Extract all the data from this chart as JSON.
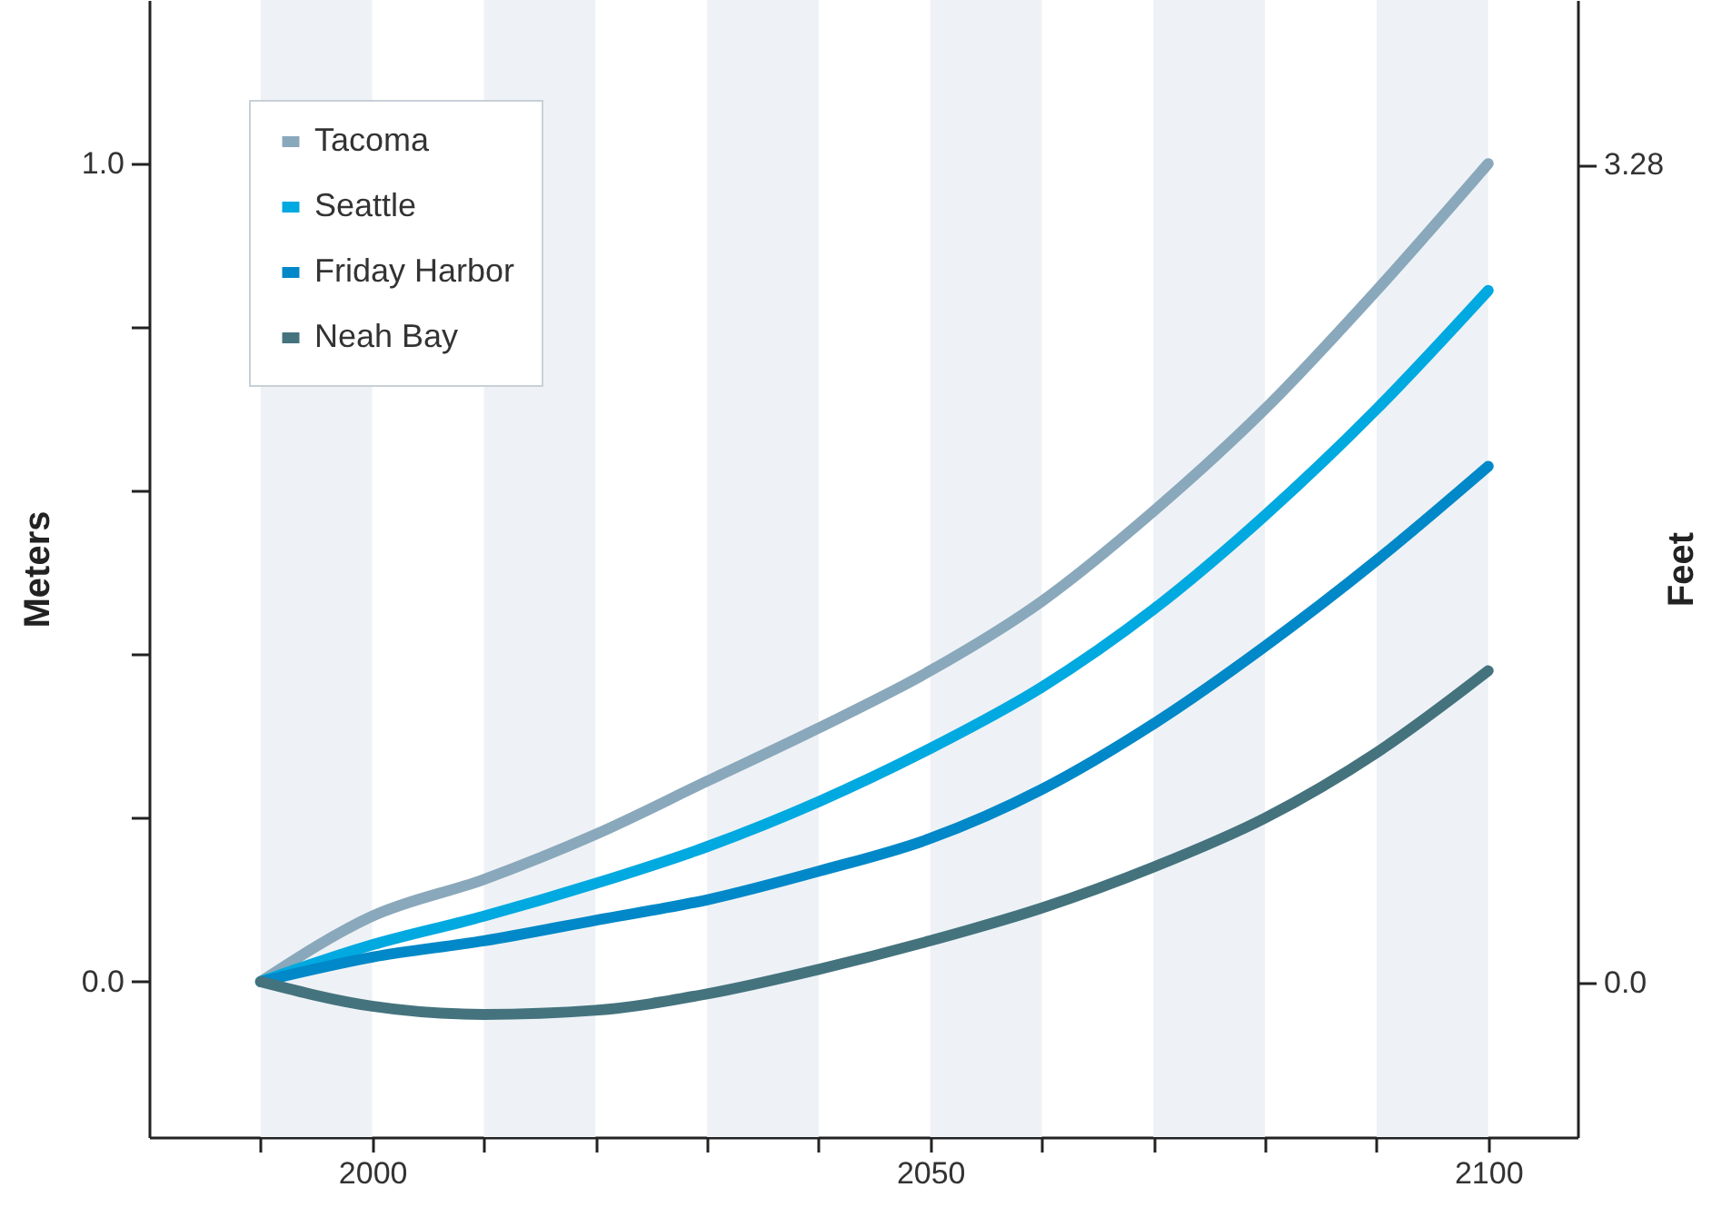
{
  "chart_data": {
    "type": "line",
    "ylabel": "Meters",
    "y2label": "Feet",
    "x": [
      1990,
      2000,
      2010,
      2020,
      2030,
      2040,
      2050,
      2060,
      2070,
      2080,
      2090,
      2100
    ],
    "series": [
      {
        "name": "Tacoma",
        "color": "#8aa8bb",
        "values": [
          0,
          0.08,
          0.125,
          0.18,
          0.245,
          0.31,
          0.38,
          0.465,
          0.575,
          0.7,
          0.845,
          1.0
        ]
      },
      {
        "name": "Seattle",
        "color": "#00a9e0",
        "values": [
          0,
          0.045,
          0.08,
          0.12,
          0.165,
          0.22,
          0.285,
          0.36,
          0.455,
          0.57,
          0.7,
          0.845
        ]
      },
      {
        "name": "Friday Harbor",
        "color": "#0088c8",
        "values": [
          0,
          0.03,
          0.05,
          0.075,
          0.1,
          0.135,
          0.175,
          0.235,
          0.315,
          0.41,
          0.515,
          0.63
        ]
      },
      {
        "name": "Neah Bay",
        "color": "#44737e",
        "values": [
          0,
          -0.03,
          -0.04,
          -0.035,
          -0.015,
          0.015,
          0.05,
          0.09,
          0.14,
          0.2,
          0.28,
          0.38
        ]
      }
    ],
    "xlim": [
      1980,
      2108
    ],
    "xticks": [
      {
        "value": 1990,
        "label": null
      },
      2000,
      {
        "value": 2010,
        "label": null
      },
      {
        "value": 2020,
        "label": null
      },
      {
        "value": 2030,
        "label": null
      },
      {
        "value": 2040,
        "label": null
      },
      2050,
      {
        "value": 2060,
        "label": null
      },
      {
        "value": 2070,
        "label": null
      },
      {
        "value": 2080,
        "label": null
      },
      {
        "value": 2090,
        "label": null
      },
      2100
    ],
    "ylim": [
      -0.19,
      1.2
    ],
    "yticks": [
      {
        "value": 0,
        "label": "0.0"
      },
      {
        "value": 0.2,
        "label": null
      },
      {
        "value": 0.4,
        "label": null
      },
      {
        "value": 0.6,
        "label": null
      },
      {
        "value": 0.8,
        "label": null
      },
      {
        "value": 1,
        "label": "1.0"
      }
    ],
    "y2lim": [
      -0.62,
      3.94
    ],
    "y2ticks": [
      {
        "value": 0,
        "label": "0.0"
      },
      3.28
    ],
    "bands": [
      {
        "axis": "x",
        "from": 1990,
        "to": 2000,
        "color": "#eef2f6"
      },
      {
        "axis": "x",
        "from": 2010,
        "to": 2020,
        "color": "#eef2f6"
      },
      {
        "axis": "x",
        "from": 2030,
        "to": 2040,
        "color": "#eef2f6"
      },
      {
        "axis": "x",
        "from": 2050,
        "to": 2060,
        "color": "#eef2f6"
      },
      {
        "axis": "x",
        "from": 2070,
        "to": 2080,
        "color": "#eef2f6"
      },
      {
        "axis": "x",
        "from": 2090,
        "to": 2100,
        "color": "#eef2f6"
      }
    ],
    "legend": "top left",
    "grid": false,
    "line_style": "solid",
    "marker": "none"
  }
}
